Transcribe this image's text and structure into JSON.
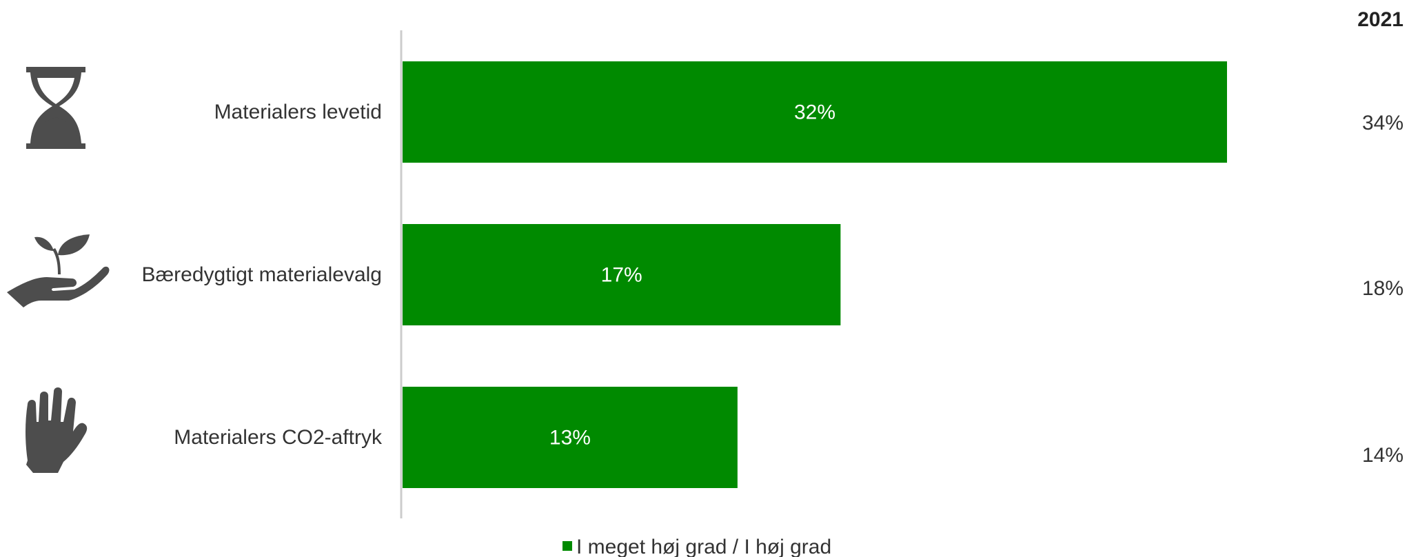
{
  "chart_data": {
    "type": "bar",
    "orientation": "horizontal",
    "categories": [
      "Materialers levetid",
      "Bæredygtigt materialevalg",
      "Materialers CO2-aftryk"
    ],
    "series": [
      {
        "name": "I meget høj grad / I høj grad",
        "values": [
          32,
          17,
          13
        ],
        "value_labels": [
          "32%",
          "17%",
          "13%"
        ],
        "color": "#008a00"
      }
    ],
    "xlim": [
      0,
      40
    ],
    "grid": false,
    "legend_position": "bottom",
    "comparison": {
      "header": "2021",
      "values": [
        34,
        18,
        14
      ],
      "value_labels": [
        "34%",
        "18%",
        "14%"
      ]
    },
    "category_icons": [
      "hourglass-icon",
      "plant-in-hand-icon",
      "hand-icon"
    ],
    "colors": {
      "bar": "#008a00",
      "icon": "#4d4d4d",
      "axis": "#cccccc"
    }
  }
}
